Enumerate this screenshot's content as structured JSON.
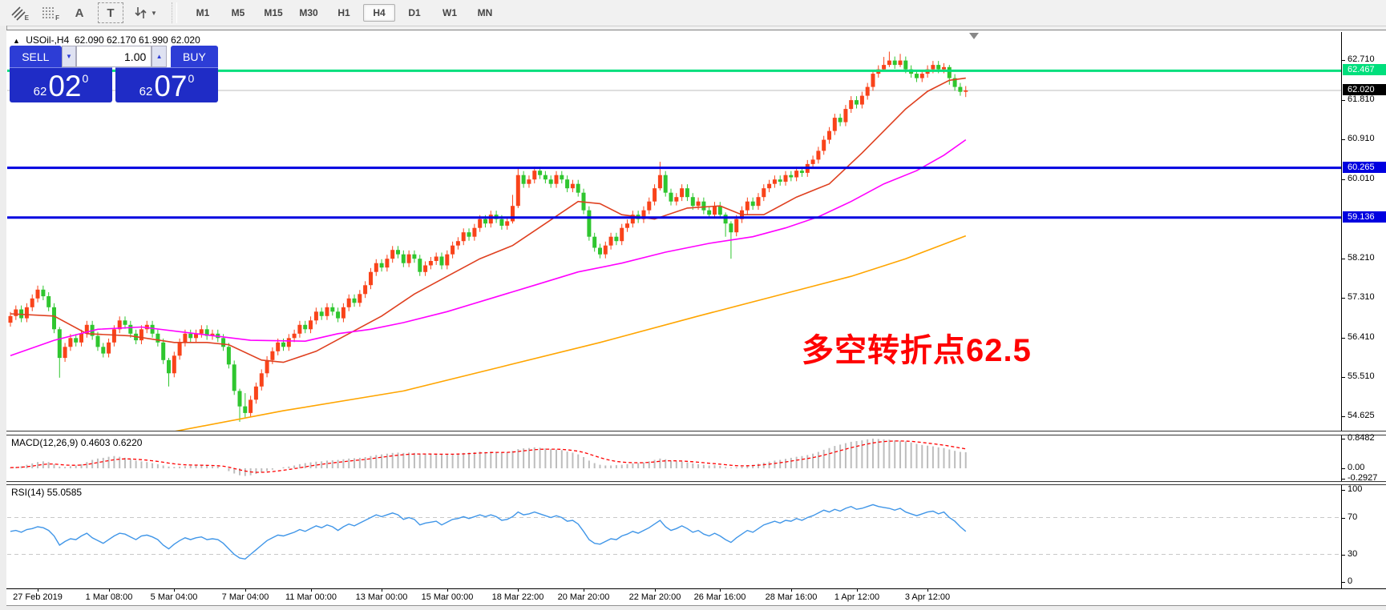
{
  "toolbar": {
    "tools": [
      {
        "label": "E",
        "name": "equidistant-channel"
      },
      {
        "label": "F",
        "name": "fibonacci-retracement"
      },
      {
        "label": "A",
        "name": "text-tool"
      },
      {
        "label": "T",
        "name": "text-label-tool"
      },
      {
        "label": "",
        "name": "arrows-tool"
      }
    ],
    "timeframes": [
      "M1",
      "M5",
      "M15",
      "M30",
      "H1",
      "H4",
      "D1",
      "W1",
      "MN"
    ],
    "active_timeframe": "H4"
  },
  "icons": {
    "dropdown": "▼",
    "collapse": "▲",
    "spinner_up": "▲",
    "spinner_down": "▼"
  },
  "chart": {
    "title_symbol": "USOil-,H4",
    "ohlc": "62.090 62.170 61.990 62.020"
  },
  "trade_panel": {
    "sell_label": "SELL",
    "buy_label": "BUY",
    "volume": "1.00",
    "sell_small": "62",
    "sell_big": "02",
    "sell_sup": "0",
    "buy_small": "62",
    "buy_big": "07",
    "buy_sup": "0"
  },
  "macd_panel": {
    "label": "MACD(12,26,9) 0.4603 0.6220"
  },
  "rsi_panel": {
    "label": "RSI(14) 55.0585"
  },
  "annotation": {
    "text": "多空转折点62.5",
    "color": "#ff0000"
  },
  "colors": {
    "up": "#f9431a",
    "down": "#2fc62f",
    "ma_fast": "#df4020",
    "ma_mid": "#ff00ff",
    "ma_slow": "#ffa500",
    "level_green": "#00df7c",
    "level_blue": "#0000e0",
    "current_price_line": "#bcbcbc",
    "macd_hist": "#bdbdbd",
    "macd_signal": "#ff0000",
    "rsi_line": "#4096e8",
    "rsi_level": "#c8c8c8",
    "annotation": "#ff0000"
  },
  "chart_data": {
    "type": "candlestick",
    "symbol": "USOil-",
    "timeframe": "H4",
    "current_ohlc": {
      "open": 62.09,
      "high": 62.17,
      "low": 61.99,
      "close": 62.02
    },
    "ylim": [
      54.3,
      63.35
    ],
    "first_open": 56.75,
    "default_wick": 0.09,
    "wick_overrides": {
      "9": [
        0.05,
        0.45
      ],
      "29": [
        0.05,
        0.3
      ],
      "42": [
        0.05,
        0.35
      ],
      "43": [
        0.3,
        0.1
      ],
      "92": [
        0.25,
        0.05
      ],
      "93": [
        0.15,
        0.05
      ],
      "119": [
        0.3,
        0.05
      ],
      "131": [
        0.05,
        0.3
      ],
      "132": [
        0.05,
        0.6
      ],
      "160": [
        0.18,
        0.05
      ],
      "161": [
        0.2,
        0.05
      ],
      "163": [
        0.15,
        0.05
      ],
      "172": [
        0.05,
        0.15
      ],
      "175": [
        0.1,
        0.12
      ]
    },
    "closes": [
      56.9,
      57.05,
      56.85,
      57.1,
      57.3,
      57.5,
      57.35,
      57.1,
      56.6,
      55.95,
      56.2,
      56.4,
      56.3,
      56.5,
      56.7,
      56.45,
      56.2,
      56.05,
      56.3,
      56.6,
      56.8,
      56.7,
      56.5,
      56.35,
      56.6,
      56.7,
      56.5,
      56.3,
      55.9,
      55.6,
      56.0,
      56.3,
      56.5,
      56.4,
      56.5,
      56.6,
      56.45,
      56.5,
      56.4,
      56.2,
      55.8,
      55.2,
      54.85,
      54.7,
      55.0,
      55.3,
      55.6,
      55.9,
      56.1,
      56.3,
      56.2,
      56.4,
      56.5,
      56.7,
      56.6,
      56.8,
      57.0,
      56.9,
      57.1,
      57.0,
      56.85,
      57.1,
      57.3,
      57.2,
      57.4,
      57.6,
      57.9,
      58.1,
      58.0,
      58.2,
      58.4,
      58.3,
      58.1,
      58.3,
      58.2,
      57.9,
      58.05,
      58.15,
      58.25,
      58.05,
      58.3,
      58.5,
      58.6,
      58.8,
      58.7,
      58.9,
      59.1,
      59.0,
      59.2,
      59.1,
      58.95,
      59.05,
      59.4,
      60.1,
      59.9,
      60.0,
      60.2,
      60.1,
      60.0,
      59.9,
      60.1,
      60.0,
      59.8,
      59.9,
      59.7,
      59.3,
      58.7,
      58.45,
      58.3,
      58.5,
      58.7,
      58.6,
      58.9,
      59.0,
      59.2,
      59.1,
      59.3,
      59.5,
      59.8,
      60.1,
      59.7,
      59.5,
      59.6,
      59.8,
      59.6,
      59.4,
      59.5,
      59.3,
      59.2,
      59.4,
      59.2,
      59.0,
      58.8,
      59.1,
      59.3,
      59.5,
      59.4,
      59.6,
      59.8,
      59.9,
      60.0,
      59.95,
      60.1,
      60.05,
      60.2,
      60.15,
      60.35,
      60.45,
      60.65,
      60.9,
      61.1,
      61.4,
      61.3,
      61.6,
      61.8,
      61.7,
      61.9,
      62.1,
      62.4,
      62.5,
      62.6,
      62.7,
      62.6,
      62.7,
      62.5,
      62.4,
      62.3,
      62.4,
      62.5,
      62.6,
      62.5,
      62.55,
      62.3,
      62.1,
      61.99,
      62.02
    ],
    "moving_averages": [
      {
        "name": "ma-fast",
        "color_key": "ma_fast",
        "points": [
          [
            0,
            56.95
          ],
          [
            8,
            56.9
          ],
          [
            14,
            56.5
          ],
          [
            22,
            56.45
          ],
          [
            30,
            56.3
          ],
          [
            36,
            56.3
          ],
          [
            40,
            56.25
          ],
          [
            46,
            55.9
          ],
          [
            50,
            55.85
          ],
          [
            56,
            56.1
          ],
          [
            62,
            56.5
          ],
          [
            68,
            56.9
          ],
          [
            74,
            57.4
          ],
          [
            80,
            57.8
          ],
          [
            86,
            58.2
          ],
          [
            92,
            58.5
          ],
          [
            98,
            59.0
          ],
          [
            104,
            59.5
          ],
          [
            108,
            59.45
          ],
          [
            112,
            59.2
          ],
          [
            118,
            59.1
          ],
          [
            124,
            59.35
          ],
          [
            130,
            59.4
          ],
          [
            134,
            59.2
          ],
          [
            138,
            59.2
          ],
          [
            144,
            59.6
          ],
          [
            150,
            59.9
          ],
          [
            156,
            60.6
          ],
          [
            160,
            61.1
          ],
          [
            164,
            61.6
          ],
          [
            168,
            62.0
          ],
          [
            172,
            62.25
          ],
          [
            175,
            62.3
          ]
        ]
      },
      {
        "name": "ma-mid",
        "color_key": "ma_mid",
        "points": [
          [
            0,
            56.0
          ],
          [
            8,
            56.35
          ],
          [
            16,
            56.6
          ],
          [
            24,
            56.65
          ],
          [
            34,
            56.5
          ],
          [
            44,
            56.35
          ],
          [
            54,
            56.33
          ],
          [
            60,
            56.5
          ],
          [
            66,
            56.6
          ],
          [
            72,
            56.75
          ],
          [
            80,
            57.0
          ],
          [
            88,
            57.3
          ],
          [
            96,
            57.6
          ],
          [
            104,
            57.9
          ],
          [
            112,
            58.1
          ],
          [
            120,
            58.35
          ],
          [
            128,
            58.55
          ],
          [
            136,
            58.7
          ],
          [
            142,
            58.9
          ],
          [
            148,
            59.15
          ],
          [
            154,
            59.5
          ],
          [
            160,
            59.9
          ],
          [
            166,
            60.2
          ],
          [
            171,
            60.55
          ],
          [
            175,
            60.9
          ]
        ]
      },
      {
        "name": "ma-slow",
        "color_key": "ma_slow",
        "points": [
          [
            30,
            54.28
          ],
          [
            50,
            54.75
          ],
          [
            72,
            55.2
          ],
          [
            90,
            55.75
          ],
          [
            108,
            56.3
          ],
          [
            126,
            56.9
          ],
          [
            140,
            57.35
          ],
          [
            154,
            57.8
          ],
          [
            164,
            58.2
          ],
          [
            175,
            58.72
          ]
        ]
      }
    ],
    "horizontal_levels": [
      {
        "price": 62.467,
        "color_key": "level_green",
        "width": 3
      },
      {
        "price": 60.265,
        "color_key": "level_blue",
        "width": 3
      },
      {
        "price": 59.136,
        "color_key": "level_blue",
        "width": 3
      }
    ],
    "current_price_level": 62.02,
    "price_ticks": [
      {
        "t": "62.710",
        "v": 62.71
      },
      {
        "t": "61.810",
        "v": 61.81
      },
      {
        "t": "60.910",
        "v": 60.91
      },
      {
        "t": "60.010",
        "v": 60.01
      },
      {
        "t": "58.210",
        "v": 58.21
      },
      {
        "t": "57.310",
        "v": 57.31
      },
      {
        "t": "56.410",
        "v": 56.41
      },
      {
        "t": "55.510",
        "v": 55.51
      },
      {
        "t": "54.625",
        "v": 54.625
      }
    ],
    "price_badges": [
      {
        "t": "62.467",
        "v": 62.467,
        "bg": "badge-green"
      },
      {
        "t": "62.020",
        "v": 62.02,
        "bg": "badge-black"
      },
      {
        "t": "60.265",
        "v": 60.265,
        "bg": "badge-blue"
      },
      {
        "t": "59.136",
        "v": 59.136,
        "bg": "badge-blue"
      }
    ],
    "x_labels": [
      {
        "t": "27 Feb 2019",
        "i": 5
      },
      {
        "t": "1 Mar 08:00",
        "i": 18
      },
      {
        "t": "5 Mar 04:00",
        "i": 30
      },
      {
        "t": "7 Mar 04:00",
        "i": 43
      },
      {
        "t": "11 Mar 00:00",
        "i": 55
      },
      {
        "t": "13 Mar 00:00",
        "i": 68
      },
      {
        "t": "15 Mar 00:00",
        "i": 80
      },
      {
        "t": "18 Mar 22:00",
        "i": 93
      },
      {
        "t": "20 Mar 20:00",
        "i": 105
      },
      {
        "t": "22 Mar 20:00",
        "i": 118
      },
      {
        "t": "26 Mar 16:00",
        "i": 130
      },
      {
        "t": "28 Mar 16:00",
        "i": 143
      },
      {
        "t": "1 Apr 12:00",
        "i": 155
      },
      {
        "t": "3 Apr 12:00",
        "i": 168
      }
    ],
    "macd": {
      "label_values": [
        0.4603,
        0.622
      ],
      "axis": [
        {
          "t": "0.8482",
          "v": 0.8482
        },
        {
          "t": "0.00",
          "v": 0.0
        },
        {
          "t": "-0.2927",
          "v": -0.2927
        }
      ],
      "values": [
        0.02,
        0.04,
        0.06,
        0.1,
        0.14,
        0.18,
        0.2,
        0.18,
        0.12,
        0.05,
        0.04,
        0.06,
        0.08,
        0.12,
        0.18,
        0.24,
        0.28,
        0.3,
        0.33,
        0.35,
        0.33,
        0.3,
        0.26,
        0.22,
        0.2,
        0.18,
        0.15,
        0.12,
        0.08,
        0.05,
        0.04,
        0.05,
        0.06,
        0.07,
        0.08,
        0.08,
        0.07,
        0.06,
        0.05,
        0.0,
        -0.08,
        -0.15,
        -0.2,
        -0.22,
        -0.2,
        -0.16,
        -0.12,
        -0.08,
        -0.04,
        0.0,
        0.03,
        0.05,
        0.08,
        0.12,
        0.15,
        0.17,
        0.19,
        0.2,
        0.22,
        0.23,
        0.24,
        0.26,
        0.28,
        0.29,
        0.3,
        0.32,
        0.35,
        0.38,
        0.4,
        0.42,
        0.44,
        0.45,
        0.44,
        0.45,
        0.44,
        0.42,
        0.41,
        0.4,
        0.4,
        0.39,
        0.4,
        0.41,
        0.42,
        0.44,
        0.45,
        0.46,
        0.48,
        0.47,
        0.48,
        0.47,
        0.45,
        0.46,
        0.5,
        0.55,
        0.57,
        0.58,
        0.6,
        0.59,
        0.57,
        0.55,
        0.54,
        0.52,
        0.48,
        0.45,
        0.4,
        0.32,
        0.22,
        0.15,
        0.1,
        0.08,
        0.08,
        0.09,
        0.1,
        0.12,
        0.14,
        0.15,
        0.17,
        0.2,
        0.24,
        0.28,
        0.26,
        0.22,
        0.2,
        0.19,
        0.17,
        0.14,
        0.12,
        0.1,
        0.08,
        0.09,
        0.07,
        0.04,
        0.02,
        0.03,
        0.05,
        0.08,
        0.1,
        0.13,
        0.16,
        0.19,
        0.22,
        0.24,
        0.27,
        0.3,
        0.33,
        0.35,
        0.38,
        0.42,
        0.47,
        0.53,
        0.58,
        0.64,
        0.68,
        0.72,
        0.76,
        0.78,
        0.8,
        0.83,
        0.85,
        0.84,
        0.83,
        0.82,
        0.8,
        0.79,
        0.77,
        0.74,
        0.7,
        0.67,
        0.65,
        0.63,
        0.6,
        0.58,
        0.54,
        0.5,
        0.47,
        0.46
      ]
    },
    "rsi": {
      "label_value": 55.0585,
      "levels": [
        70,
        30
      ],
      "axis": [
        {
          "t": "100",
          "v": 100
        },
        {
          "t": "70",
          "v": 70
        },
        {
          "t": "30",
          "v": 30
        },
        {
          "t": "0",
          "v": 0
        }
      ],
      "values": [
        55,
        56,
        54,
        57,
        58,
        60,
        59,
        56,
        50,
        40,
        44,
        47,
        46,
        50,
        53,
        48,
        45,
        42,
        46,
        50,
        53,
        52,
        49,
        46,
        50,
        51,
        49,
        46,
        40,
        36,
        41,
        45,
        48,
        46,
        48,
        49,
        46,
        47,
        46,
        42,
        36,
        30,
        26,
        25,
        30,
        35,
        40,
        45,
        48,
        51,
        50,
        52,
        54,
        57,
        55,
        58,
        61,
        59,
        62,
        60,
        56,
        60,
        63,
        61,
        64,
        67,
        70,
        73,
        71,
        73,
        75,
        73,
        68,
        70,
        68,
        62,
        64,
        65,
        66,
        62,
        65,
        68,
        69,
        71,
        69,
        71,
        73,
        71,
        73,
        71,
        67,
        68,
        71,
        76,
        73,
        74,
        76,
        74,
        72,
        70,
        72,
        70,
        66,
        67,
        63,
        55,
        46,
        42,
        41,
        44,
        47,
        46,
        50,
        52,
        55,
        53,
        56,
        59,
        63,
        67,
        60,
        56,
        58,
        61,
        58,
        54,
        56,
        52,
        50,
        53,
        50,
        46,
        43,
        48,
        52,
        56,
        54,
        58,
        62,
        64,
        66,
        64,
        67,
        66,
        69,
        67,
        70,
        72,
        75,
        78,
        76,
        79,
        77,
        80,
        82,
        79,
        80,
        82,
        84,
        82,
        81,
        80,
        78,
        80,
        76,
        74,
        72,
        74,
        76,
        77,
        74,
        76,
        70,
        66,
        60,
        55
      ]
    }
  }
}
